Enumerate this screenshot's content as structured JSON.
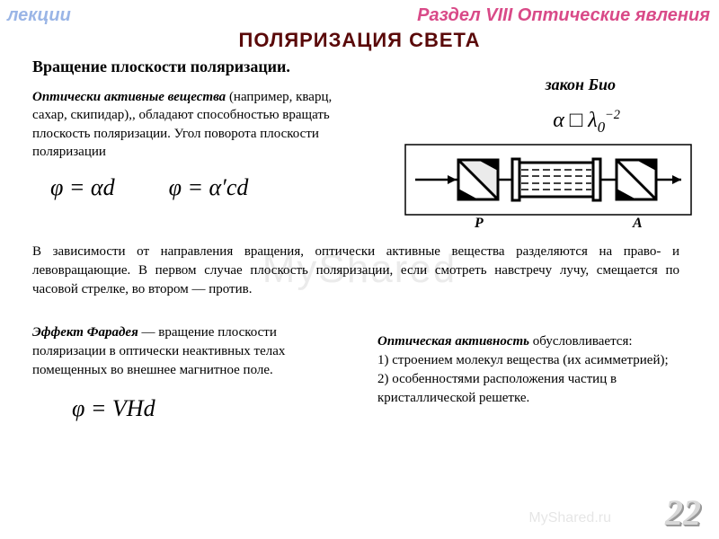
{
  "header": {
    "left": "лекции",
    "right": "Раздел VIII Оптические явления"
  },
  "title": "ПОЛЯРИЗАЦИЯ СВЕТА",
  "subtitle": "Вращение плоскости поляризации.",
  "bio_law_label": "закон Био",
  "para1_lead": "Оптически активные вещества",
  "para1_rest": " (например, кварц, сахар, скипидар),, обладают способностью вращать плоскость поляризации. Угол поворота плоскости поляризации",
  "formula1": "φ = αd",
  "formula2": "φ = α′cd",
  "bio_formula_html": "α □ λ<sub>0</sub><sup>−2</sup>",
  "para2": "В зависимости от направления вращения, оптически активные вещества разделяются на право- и левовращающие. В первом случае плоскость поляризации, если смотреть навстречу лучу, смещается по часовой стрелке, во втором — против.",
  "para3_lead": "Эффект Фарадея",
  "para3_rest": " — вращение плоскости поляризации в оптически неактивных телах помещенных во внешнее магнитное поле.",
  "formula_faraday": "φ = VHd",
  "para4_lead": "Оптическая активность",
  "para4_rest": " обусловливается:",
  "para4_item1": "1)  строением молекул вещества (их асимметрией);",
  "para4_item2": "2) особенностями расположения частиц в кристаллической решетке.",
  "diagram": {
    "label_left": "P",
    "label_right": "A"
  },
  "watermark_center": "MyShared",
  "watermark_footer": "MyShared.ru",
  "page_number": "22",
  "colors": {
    "title": "#5a0909",
    "header_right": "#D94A88",
    "header_left": "rgba(30,90,200,0.45)",
    "pagenum": "#d8d8d8"
  }
}
